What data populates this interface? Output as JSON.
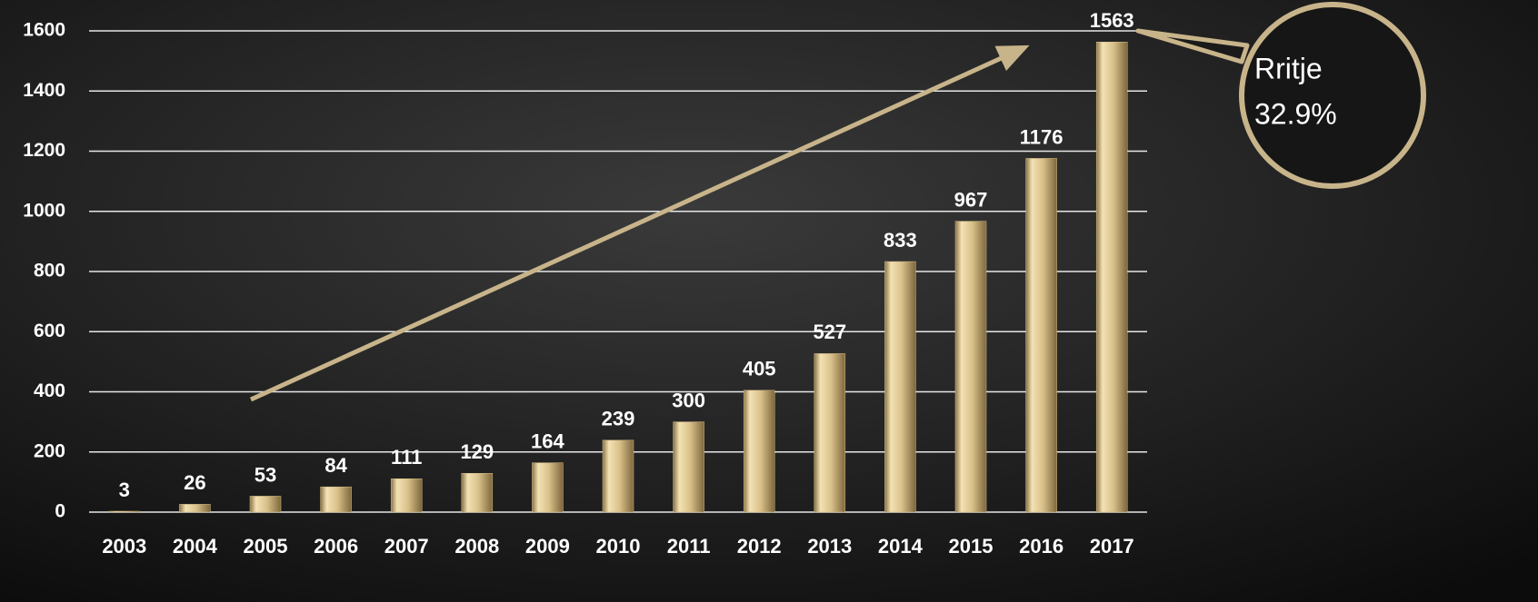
{
  "chart_data": {
    "type": "bar",
    "categories": [
      "2003",
      "2004",
      "2005",
      "2006",
      "2007",
      "2008",
      "2009",
      "2010",
      "2011",
      "2012",
      "2013",
      "2014",
      "2015",
      "2016",
      "2017"
    ],
    "values": [
      3,
      26,
      53,
      84,
      111,
      129,
      164,
      239,
      300,
      405,
      527,
      833,
      967,
      1176,
      1563
    ],
    "color": "#d9c08a",
    "ylim": [
      0,
      1600
    ],
    "yticks": [
      0,
      200,
      400,
      600,
      800,
      1000,
      1200,
      1400,
      1600
    ],
    "grid": true,
    "annotation": {
      "label": "Rritje",
      "value": "32.9%"
    }
  }
}
